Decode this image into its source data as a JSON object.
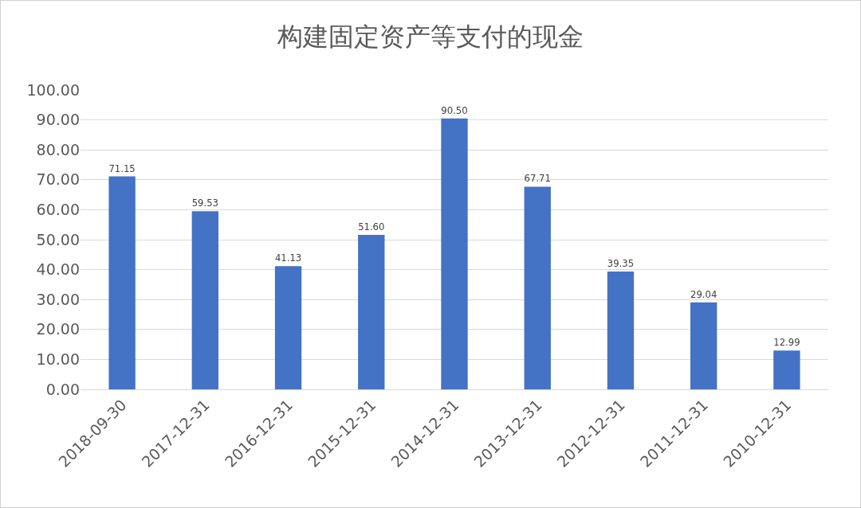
{
  "chart_data": {
    "type": "bar",
    "title": "构建固定资产等支付的现金",
    "categories": [
      "2018-09-30",
      "2017-12-31",
      "2016-12-31",
      "2015-12-31",
      "2014-12-31",
      "2013-12-31",
      "2012-12-31",
      "2011-12-31",
      "2010-12-31"
    ],
    "values": [
      71.15,
      59.53,
      41.13,
      51.6,
      90.5,
      67.71,
      39.35,
      29.04,
      12.99
    ],
    "value_labels": [
      "71.15",
      "59.53",
      "41.13",
      "51.60",
      "90.50",
      "67.71",
      "39.35",
      "29.04",
      "12.99"
    ],
    "color": "#4472c4",
    "ylim": [
      0,
      100
    ],
    "yticks": [
      {
        "value": 0,
        "label": "0.00"
      },
      {
        "value": 10,
        "label": "10.00"
      },
      {
        "value": 20,
        "label": "20.00"
      },
      {
        "value": 30,
        "label": "30.00"
      },
      {
        "value": 40,
        "label": "40.00"
      },
      {
        "value": 50,
        "label": "50.00"
      },
      {
        "value": 60,
        "label": "60.00"
      },
      {
        "value": 70,
        "label": "70.00"
      },
      {
        "value": 80,
        "label": "80.00"
      },
      {
        "value": 90,
        "label": "90.00"
      },
      {
        "value": 100,
        "label": "100.00"
      }
    ],
    "grid": "y",
    "legend": false
  }
}
